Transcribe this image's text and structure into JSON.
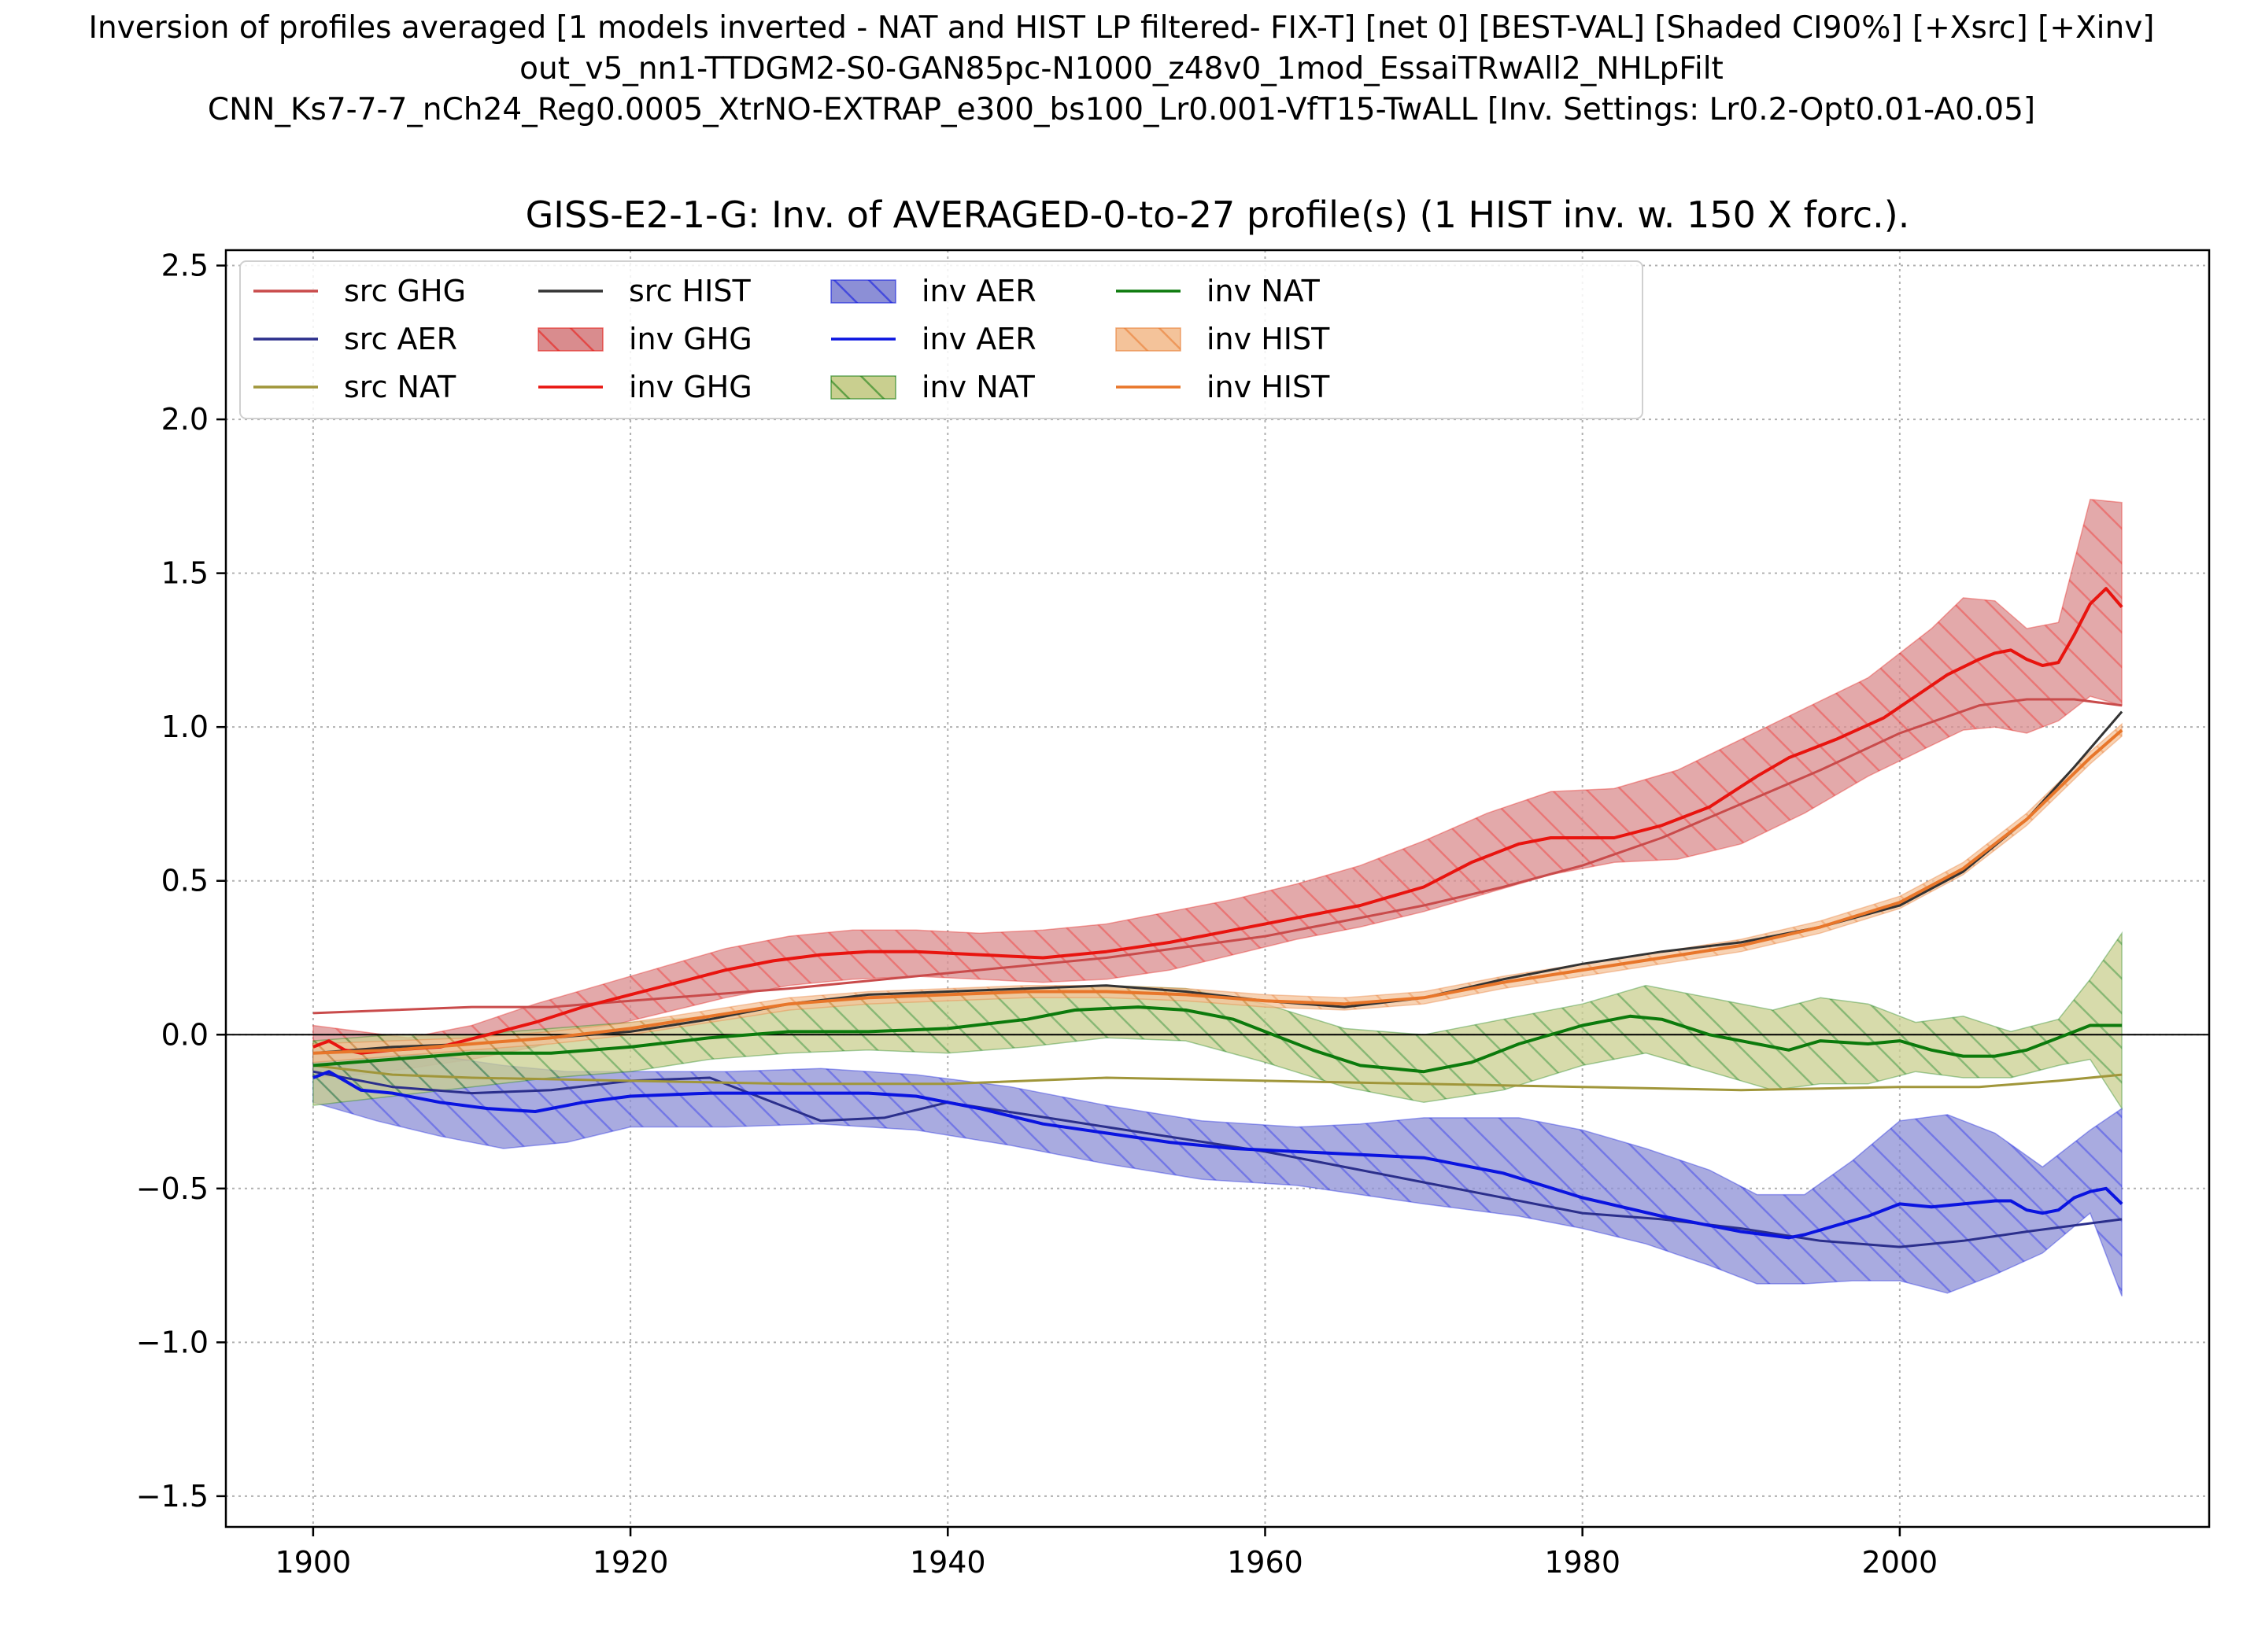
{
  "figure": {
    "suptitle_lines": [
      "Inversion of profiles averaged [1 models inverted - NAT and HIST LP filtered- FIX-T] [net 0] [BEST-VAL] [Shaded CI90%] [+Xsrc] [+Xinv]",
      "out_v5_nn1-TTDGM2-S0-GAN85pc-N1000_z48v0_1mod_EssaiTRwAll2_NHLpFilt",
      "CNN_Ks7-7-7_nCh24_Reg0.0005_XtrNO-EXTRAP_e300_bs100_Lr0.001-VfT15-TwALL [Inv. Settings: Lr0.2-Opt0.01-A0.05]"
    ]
  },
  "colors": {
    "src_ghg": "#c94b4b",
    "src_aer": "#2b2f8c",
    "src_nat": "#a0963a",
    "src_hist": "#333333",
    "inv_ghg_line": "#e8140f",
    "inv_ghg_fill": "#d98c8e",
    "inv_aer_line": "#0a14e0",
    "inv_aer_fill": "#8c8fd6",
    "inv_nat_line": "#0c7a0c",
    "inv_nat_fill": "#c9cf8f",
    "inv_hist_line": "#e8762a",
    "inv_hist_fill": "#f4c39a"
  },
  "chart_data": {
    "type": "line",
    "title": "GISS-E2-1-G: Inv. of AVERAGED-0-to-27 profile(s) (1 HIST inv. w. 150 X forc.).",
    "xlabel": "",
    "ylabel": "",
    "xlim": [
      1894.5,
      2019.5
    ],
    "ylim": [
      -1.6,
      2.55
    ],
    "xticks": [
      1900,
      1920,
      1940,
      1960,
      1980,
      2000
    ],
    "xtick_labels": [
      "1900",
      "1920",
      "1940",
      "1960",
      "1980",
      "2000"
    ],
    "yticks": [
      -1.5,
      -1.0,
      -0.5,
      0.0,
      0.5,
      1.0,
      1.5,
      2.0,
      2.5
    ],
    "ytick_labels": [
      "−1.5",
      "−1.0",
      "−0.5",
      "0.0",
      "0.5",
      "1.0",
      "1.5",
      "2.0",
      "2.5"
    ],
    "grid": true,
    "zero_line": true,
    "legend": {
      "placement": "upper-left",
      "columns": 5,
      "entries": [
        {
          "label": "src GHG",
          "kind": "line",
          "color_key": "src_ghg"
        },
        {
          "label": "src AER",
          "kind": "line",
          "color_key": "src_aer"
        },
        {
          "label": "src NAT",
          "kind": "line",
          "color_key": "src_nat"
        },
        {
          "label": "src HIST",
          "kind": "line",
          "color_key": "src_hist"
        },
        {
          "label": "inv GHG",
          "kind": "band",
          "color_key": "inv_ghg_fill",
          "edge_key": "inv_ghg_line"
        },
        {
          "label": "inv GHG",
          "kind": "line",
          "color_key": "inv_ghg_line"
        },
        {
          "label": "inv AER",
          "kind": "band",
          "color_key": "inv_aer_fill",
          "edge_key": "inv_aer_line"
        },
        {
          "label": "inv AER",
          "kind": "line",
          "color_key": "inv_aer_line"
        },
        {
          "label": "inv NAT",
          "kind": "band",
          "color_key": "inv_nat_fill",
          "edge_key": "inv_nat_line"
        },
        {
          "label": "inv NAT",
          "kind": "line",
          "color_key": "inv_nat_line"
        },
        {
          "label": "inv HIST",
          "kind": "band",
          "color_key": "inv_hist_fill",
          "edge_key": "inv_hist_line"
        },
        {
          "label": "inv HIST",
          "kind": "line",
          "color_key": "inv_hist_line"
        }
      ]
    },
    "bands": [
      {
        "name": "inv GHG",
        "color_key": "inv_ghg_fill",
        "edge_key": "inv_ghg_line",
        "x": [
          1900,
          1903,
          1906,
          1910,
          1914,
          1918,
          1922,
          1926,
          1930,
          1934,
          1938,
          1942,
          1946,
          1950,
          1954,
          1958,
          1962,
          1966,
          1970,
          1974,
          1978,
          1982,
          1986,
          1990,
          1994,
          1998,
          2002,
          2004,
          2006,
          2008,
          2010,
          2012,
          2014
        ],
        "upper": [
          0.03,
          0.01,
          -0.01,
          0.03,
          0.1,
          0.16,
          0.22,
          0.28,
          0.32,
          0.34,
          0.34,
          0.33,
          0.34,
          0.36,
          0.4,
          0.44,
          0.49,
          0.55,
          0.63,
          0.72,
          0.79,
          0.8,
          0.86,
          0.96,
          1.06,
          1.16,
          1.32,
          1.42,
          1.41,
          1.32,
          1.34,
          1.74,
          1.73
        ],
        "lower": [
          -0.14,
          -0.13,
          -0.11,
          -0.08,
          -0.04,
          0.02,
          0.07,
          0.12,
          0.16,
          0.18,
          0.19,
          0.18,
          0.17,
          0.18,
          0.21,
          0.26,
          0.31,
          0.35,
          0.4,
          0.46,
          0.52,
          0.56,
          0.57,
          0.62,
          0.72,
          0.84,
          0.94,
          0.99,
          1.0,
          0.98,
          1.02,
          1.1,
          1.07
        ]
      },
      {
        "name": "inv AER",
        "color_key": "inv_aer_fill",
        "edge_key": "inv_aer_line",
        "x": [
          1900,
          1904,
          1908,
          1912,
          1916,
          1920,
          1926,
          1932,
          1938,
          1944,
          1950,
          1956,
          1962,
          1966,
          1970,
          1976,
          1980,
          1984,
          1988,
          1991,
          1994,
          1997,
          2000,
          2003,
          2006,
          2009,
          2012,
          2014
        ],
        "upper": [
          -0.05,
          -0.06,
          -0.07,
          -0.1,
          -0.12,
          -0.12,
          -0.12,
          -0.11,
          -0.13,
          -0.17,
          -0.23,
          -0.28,
          -0.3,
          -0.29,
          -0.27,
          -0.27,
          -0.31,
          -0.37,
          -0.44,
          -0.52,
          -0.52,
          -0.41,
          -0.28,
          -0.26,
          -0.32,
          -0.43,
          -0.31,
          -0.24
        ],
        "lower": [
          -0.22,
          -0.28,
          -0.33,
          -0.37,
          -0.35,
          -0.3,
          -0.3,
          -0.29,
          -0.31,
          -0.36,
          -0.42,
          -0.47,
          -0.49,
          -0.52,
          -0.55,
          -0.59,
          -0.63,
          -0.68,
          -0.75,
          -0.81,
          -0.81,
          -0.8,
          -0.8,
          -0.84,
          -0.78,
          -0.71,
          -0.58,
          -0.85
        ]
      },
      {
        "name": "inv NAT",
        "color_key": "inv_nat_fill",
        "edge_key": "inv_nat_line",
        "x": [
          1900,
          1905,
          1910,
          1915,
          1920,
          1925,
          1930,
          1935,
          1940,
          1945,
          1950,
          1955,
          1960,
          1965,
          1970,
          1975,
          1980,
          1984,
          1988,
          1992,
          1995,
          1998,
          2001,
          2004,
          2007,
          2010,
          2012,
          2014
        ],
        "upper": [
          -0.02,
          0.0,
          0.0,
          0.02,
          0.04,
          0.06,
          0.1,
          0.13,
          0.14,
          0.15,
          0.16,
          0.15,
          0.1,
          0.02,
          0.0,
          0.05,
          0.1,
          0.16,
          0.12,
          0.08,
          0.12,
          0.1,
          0.04,
          0.06,
          0.01,
          0.05,
          0.18,
          0.33
        ],
        "lower": [
          -0.23,
          -0.2,
          -0.17,
          -0.14,
          -0.12,
          -0.08,
          -0.06,
          -0.05,
          -0.06,
          -0.04,
          -0.01,
          -0.02,
          -0.09,
          -0.17,
          -0.22,
          -0.18,
          -0.1,
          -0.06,
          -0.12,
          -0.18,
          -0.16,
          -0.16,
          -0.12,
          -0.14,
          -0.14,
          -0.1,
          -0.08,
          -0.24
        ]
      },
      {
        "name": "inv HIST",
        "color_key": "inv_hist_fill",
        "edge_key": "inv_hist_line",
        "x": [
          1900,
          1905,
          1910,
          1915,
          1920,
          1925,
          1930,
          1935,
          1940,
          1945,
          1950,
          1955,
          1960,
          1965,
          1970,
          1975,
          1980,
          1985,
          1990,
          1995,
          2000,
          2004,
          2008,
          2012,
          2014
        ],
        "upper": [
          -0.03,
          -0.02,
          -0.01,
          0.01,
          0.04,
          0.08,
          0.12,
          0.14,
          0.15,
          0.16,
          0.16,
          0.15,
          0.13,
          0.12,
          0.14,
          0.19,
          0.23,
          0.27,
          0.31,
          0.37,
          0.45,
          0.56,
          0.72,
          0.92,
          1.01
        ],
        "lower": [
          -0.09,
          -0.07,
          -0.05,
          -0.03,
          0.0,
          0.04,
          0.08,
          0.1,
          0.11,
          0.12,
          0.12,
          0.11,
          0.09,
          0.08,
          0.1,
          0.15,
          0.19,
          0.23,
          0.27,
          0.33,
          0.41,
          0.52,
          0.68,
          0.88,
          0.97
        ]
      }
    ],
    "series": [
      {
        "name": "src GHG",
        "color_key": "src_ghg",
        "x": [
          1900,
          1905,
          1910,
          1915,
          1920,
          1930,
          1940,
          1950,
          1960,
          1965,
          1970,
          1975,
          1980,
          1985,
          1990,
          1995,
          2000,
          2005,
          2008,
          2011,
          2014
        ],
        "values": [
          0.07,
          0.08,
          0.09,
          0.09,
          0.11,
          0.15,
          0.2,
          0.25,
          0.32,
          0.37,
          0.42,
          0.48,
          0.55,
          0.64,
          0.75,
          0.86,
          0.98,
          1.07,
          1.09,
          1.09,
          1.07
        ]
      },
      {
        "name": "src AER",
        "color_key": "src_aer",
        "x": [
          1900,
          1905,
          1910,
          1915,
          1920,
          1925,
          1928,
          1932,
          1936,
          1940,
          1945,
          1950,
          1955,
          1960,
          1965,
          1970,
          1975,
          1980,
          1985,
          1990,
          1995,
          2000,
          2004,
          2008,
          2014
        ],
        "values": [
          -0.12,
          -0.17,
          -0.19,
          -0.18,
          -0.15,
          -0.14,
          -0.2,
          -0.28,
          -0.27,
          -0.22,
          -0.26,
          -0.3,
          -0.34,
          -0.38,
          -0.43,
          -0.48,
          -0.53,
          -0.58,
          -0.6,
          -0.63,
          -0.67,
          -0.69,
          -0.67,
          -0.64,
          -0.6
        ]
      },
      {
        "name": "src NAT",
        "color_key": "src_nat",
        "x": [
          1900,
          1905,
          1910,
          1920,
          1930,
          1940,
          1950,
          1960,
          1970,
          1980,
          1990,
          2000,
          2005,
          2010,
          2014
        ],
        "values": [
          -0.1,
          -0.13,
          -0.14,
          -0.15,
          -0.16,
          -0.16,
          -0.14,
          -0.15,
          -0.16,
          -0.17,
          -0.18,
          -0.17,
          -0.17,
          -0.15,
          -0.13
        ]
      },
      {
        "name": "src HIST",
        "color_key": "src_hist",
        "x": [
          1900,
          1905,
          1910,
          1915,
          1920,
          1925,
          1930,
          1935,
          1940,
          1945,
          1950,
          1955,
          1960,
          1965,
          1970,
          1975,
          1980,
          1985,
          1990,
          1995,
          2000,
          2004,
          2008,
          2011,
          2014
        ],
        "values": [
          -0.06,
          -0.04,
          -0.03,
          -0.01,
          0.01,
          0.05,
          0.1,
          0.13,
          0.14,
          0.15,
          0.16,
          0.14,
          0.11,
          0.09,
          0.12,
          0.18,
          0.23,
          0.27,
          0.3,
          0.35,
          0.42,
          0.53,
          0.7,
          0.87,
          1.05
        ]
      },
      {
        "name": "inv GHG",
        "color_key": "inv_ghg_line",
        "x": [
          1900,
          1901,
          1902,
          1903,
          1905,
          1908,
          1911,
          1914,
          1917,
          1920,
          1923,
          1926,
          1929,
          1932,
          1935,
          1938,
          1942,
          1946,
          1950,
          1954,
          1958,
          1962,
          1966,
          1970,
          1973,
          1976,
          1978,
          1982,
          1985,
          1988,
          1991,
          1993,
          1994,
          1996,
          1999,
          2001,
          2003,
          2005,
          2006,
          2007,
          2008,
          2009,
          2010,
          2011,
          2012,
          2013,
          2014
        ],
        "values": [
          -0.04,
          -0.02,
          -0.05,
          -0.06,
          -0.05,
          -0.04,
          0.0,
          0.04,
          0.09,
          0.13,
          0.17,
          0.21,
          0.24,
          0.26,
          0.27,
          0.27,
          0.26,
          0.25,
          0.27,
          0.3,
          0.34,
          0.38,
          0.42,
          0.48,
          0.56,
          0.62,
          0.64,
          0.64,
          0.68,
          0.74,
          0.84,
          0.9,
          0.92,
          0.96,
          1.03,
          1.1,
          1.17,
          1.22,
          1.24,
          1.25,
          1.22,
          1.2,
          1.21,
          1.3,
          1.4,
          1.45,
          1.39
        ]
      },
      {
        "name": "inv AER",
        "color_key": "inv_aer_line",
        "x": [
          1900,
          1901,
          1902,
          1903,
          1905,
          1908,
          1911,
          1914,
          1917,
          1920,
          1925,
          1930,
          1935,
          1938,
          1942,
          1946,
          1950,
          1954,
          1958,
          1962,
          1966,
          1970,
          1975,
          1980,
          1985,
          1990,
          1993,
          1994,
          1996,
          1998,
          2000,
          2002,
          2004,
          2006,
          2007,
          2008,
          2009,
          2010,
          2011,
          2012,
          2013,
          2014
        ],
        "values": [
          -0.14,
          -0.12,
          -0.15,
          -0.18,
          -0.19,
          -0.22,
          -0.24,
          -0.25,
          -0.22,
          -0.2,
          -0.19,
          -0.19,
          -0.19,
          -0.2,
          -0.24,
          -0.29,
          -0.32,
          -0.35,
          -0.37,
          -0.38,
          -0.39,
          -0.4,
          -0.45,
          -0.53,
          -0.59,
          -0.64,
          -0.66,
          -0.65,
          -0.62,
          -0.59,
          -0.55,
          -0.56,
          -0.55,
          -0.54,
          -0.54,
          -0.57,
          -0.58,
          -0.57,
          -0.53,
          -0.51,
          -0.5,
          -0.55
        ]
      },
      {
        "name": "inv NAT",
        "color_key": "inv_nat_line",
        "x": [
          1900,
          1905,
          1910,
          1915,
          1920,
          1925,
          1930,
          1935,
          1940,
          1945,
          1948,
          1952,
          1955,
          1958,
          1960,
          1963,
          1966,
          1970,
          1973,
          1976,
          1980,
          1983,
          1985,
          1988,
          1991,
          1993,
          1995,
          1998,
          2000,
          2002,
          2004,
          2006,
          2008,
          2010,
          2012,
          2014
        ],
        "values": [
          -0.1,
          -0.08,
          -0.06,
          -0.06,
          -0.04,
          -0.01,
          0.01,
          0.01,
          0.02,
          0.05,
          0.08,
          0.09,
          0.08,
          0.05,
          0.01,
          -0.05,
          -0.1,
          -0.12,
          -0.09,
          -0.03,
          0.03,
          0.06,
          0.05,
          0.0,
          -0.03,
          -0.05,
          -0.02,
          -0.03,
          -0.02,
          -0.05,
          -0.07,
          -0.07,
          -0.05,
          -0.01,
          0.03,
          0.03
        ]
      },
      {
        "name": "inv HIST",
        "color_key": "inv_hist_line",
        "x": [
          1900,
          1905,
          1910,
          1915,
          1920,
          1925,
          1930,
          1935,
          1940,
          1945,
          1950,
          1955,
          1960,
          1965,
          1970,
          1975,
          1980,
          1985,
          1990,
          1995,
          2000,
          2004,
          2008,
          2012,
          2014
        ],
        "values": [
          -0.06,
          -0.05,
          -0.03,
          -0.01,
          0.02,
          0.06,
          0.1,
          0.12,
          0.13,
          0.14,
          0.14,
          0.13,
          0.11,
          0.1,
          0.12,
          0.17,
          0.21,
          0.25,
          0.29,
          0.35,
          0.43,
          0.54,
          0.7,
          0.9,
          0.99
        ]
      }
    ]
  }
}
